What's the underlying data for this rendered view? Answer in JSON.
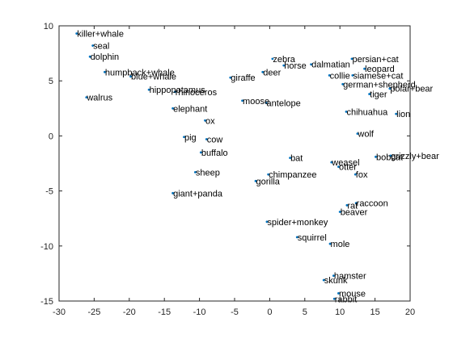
{
  "colors": {
    "marker": "#0072BD",
    "axis": "#262626",
    "text": "#000000"
  },
  "chart_data": {
    "type": "scatter",
    "title": "",
    "xlabel": "",
    "ylabel": "",
    "xlim": [
      -30,
      20
    ],
    "ylim": [
      -15,
      10
    ],
    "grid": false,
    "xticks": [
      -30,
      -25,
      -20,
      -15,
      -10,
      -5,
      0,
      5,
      10,
      15,
      20
    ],
    "yticks": [
      -15,
      -10,
      -5,
      0,
      5,
      10
    ],
    "xtick_labels": [
      "-30",
      "-25",
      "-20",
      "-15",
      "-10",
      "-5",
      "0",
      "5",
      "10",
      "15",
      "20"
    ],
    "ytick_labels": [
      "-15",
      "-10",
      "-5",
      "0",
      "5",
      "10"
    ],
    "points": [
      {
        "label": "killer+whale",
        "x": -27.5,
        "y": 9.3
      },
      {
        "label": "seal",
        "x": -25.2,
        "y": 8.2
      },
      {
        "label": "dolphin",
        "x": -25.6,
        "y": 7.2
      },
      {
        "label": "humpback+whale",
        "x": -23.5,
        "y": 5.8
      },
      {
        "label": "blue+whale",
        "x": -19.8,
        "y": 5.4
      },
      {
        "label": "hippopotamus",
        "x": -17.2,
        "y": 4.2
      },
      {
        "label": "rhinoceros",
        "x": -13.5,
        "y": 4.0
      },
      {
        "label": "walrus",
        "x": -26.1,
        "y": 3.5
      },
      {
        "label": "elephant",
        "x": -13.8,
        "y": 2.5
      },
      {
        "label": "giraffe",
        "x": -5.6,
        "y": 5.3
      },
      {
        "label": "moose",
        "x": -3.9,
        "y": 3.2
      },
      {
        "label": "antelope",
        "x": -0.5,
        "y": 3.0
      },
      {
        "label": "zebra",
        "x": 0.4,
        "y": 7.0
      },
      {
        "label": "horse",
        "x": 2.0,
        "y": 6.4
      },
      {
        "label": "deer",
        "x": -1.0,
        "y": 5.8
      },
      {
        "label": "dalmatian",
        "x": 5.9,
        "y": 6.5
      },
      {
        "label": "persian+cat",
        "x": 11.7,
        "y": 7.0
      },
      {
        "label": "leopard",
        "x": 13.5,
        "y": 6.1
      },
      {
        "label": "collie",
        "x": 8.5,
        "y": 5.5
      },
      {
        "label": "siamese+cat",
        "x": 11.8,
        "y": 5.5
      },
      {
        "label": "german+shepherd",
        "x": 10.4,
        "y": 4.7
      },
      {
        "label": "polar+bear",
        "x": 17.1,
        "y": 4.3
      },
      {
        "label": "tiger",
        "x": 14.2,
        "y": 3.8
      },
      {
        "label": "chihuahua",
        "x": 10.9,
        "y": 2.2
      },
      {
        "label": "lion",
        "x": 18.0,
        "y": 2.0
      },
      {
        "label": "ox",
        "x": -9.2,
        "y": 1.4
      },
      {
        "label": "wolf",
        "x": 12.5,
        "y": 0.2
      },
      {
        "label": "pig",
        "x": -12.2,
        "y": -0.1
      },
      {
        "label": "cow",
        "x": -9.0,
        "y": -0.3
      },
      {
        "label": "buffalo",
        "x": -9.8,
        "y": -1.5
      },
      {
        "label": "bat",
        "x": 2.9,
        "y": -2.0
      },
      {
        "label": "weasel",
        "x": 8.8,
        "y": -2.4
      },
      {
        "label": "otter",
        "x": 9.8,
        "y": -2.8
      },
      {
        "label": "bobcat",
        "x": 15.1,
        "y": -1.9
      },
      {
        "label": "grizzly+bear",
        "x": 17.2,
        "y": -1.8
      },
      {
        "label": "fox",
        "x": 12.2,
        "y": -3.5
      },
      {
        "label": "sheep",
        "x": -10.6,
        "y": -3.3
      },
      {
        "label": "chimpanzee",
        "x": -0.2,
        "y": -3.5
      },
      {
        "label": "gorilla",
        "x": -2.0,
        "y": -4.1
      },
      {
        "label": "giant+panda",
        "x": -13.8,
        "y": -5.2
      },
      {
        "label": "rat",
        "x": 11.0,
        "y": -6.3
      },
      {
        "label": "raccoon",
        "x": 12.3,
        "y": -6.1
      },
      {
        "label": "beaver",
        "x": 10.0,
        "y": -6.9
      },
      {
        "label": "spider+monkey",
        "x": -0.4,
        "y": -7.8
      },
      {
        "label": "squirrel",
        "x": 3.9,
        "y": -9.2
      },
      {
        "label": "mole",
        "x": 8.6,
        "y": -9.8
      },
      {
        "label": "hamster",
        "x": 9.1,
        "y": -12.7
      },
      {
        "label": "skunk",
        "x": 7.7,
        "y": -13.1
      },
      {
        "label": "mouse",
        "x": 9.8,
        "y": -14.3
      },
      {
        "label": "rabbit",
        "x": 9.2,
        "y": -14.8
      }
    ]
  }
}
